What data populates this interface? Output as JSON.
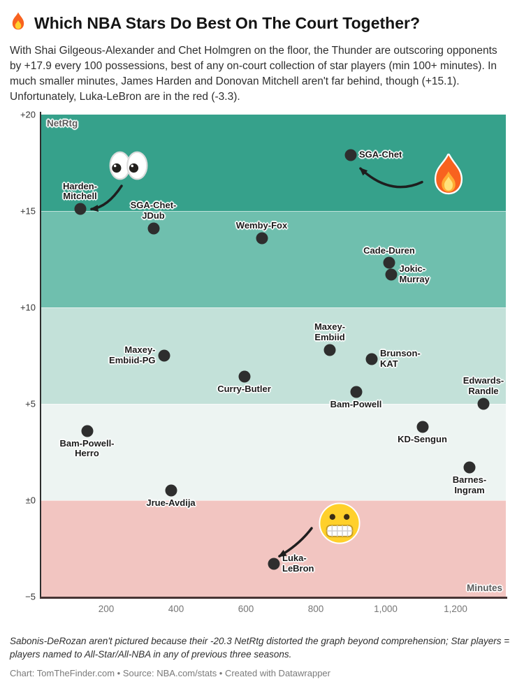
{
  "header": {
    "title": "Which NBA Stars Do Best On The Court Together?",
    "title_emoji": "fire-emoji",
    "description": "With Shai Gilgeous-Alexander and Chet Holmgren on the floor, the Thunder are outscoring opponents by +17.9 every 100 possessions, best of any on-court collection of star players (min 100+ minutes). In much smaller minutes, James Harden and Donovan Mitchell aren't far behind, though (+15.1). Unfortunately, Luka-LeBron are in the red (-3.3)."
  },
  "chart_data": {
    "type": "scatter",
    "xlabel": "Minutes",
    "ylabel": "NetRtg",
    "xlim": [
      14,
      1344
    ],
    "ylim": [
      -5,
      20
    ],
    "grid": "horizontal band boundaries",
    "legend": "none",
    "point_color": "#2e2e2e",
    "x_ticks": [
      {
        "value": 200,
        "label": "200"
      },
      {
        "value": 400,
        "label": "400"
      },
      {
        "value": 600,
        "label": "600"
      },
      {
        "value": 800,
        "label": "800"
      },
      {
        "value": 1000,
        "label": "1,000"
      },
      {
        "value": 1200,
        "label": "1,200"
      }
    ],
    "y_ticks": [
      {
        "value": 20,
        "label": "+20"
      },
      {
        "value": 15,
        "label": "+15"
      },
      {
        "value": 10,
        "label": "+10"
      },
      {
        "value": 5,
        "label": "+5"
      },
      {
        "value": 0,
        "label": "±0"
      },
      {
        "value": -5,
        "label": "−5"
      }
    ],
    "bands": [
      {
        "from": 15,
        "to": 20,
        "color": "#36a18b"
      },
      {
        "from": 10,
        "to": 15,
        "color": "#6fbfae"
      },
      {
        "from": 5,
        "to": 10,
        "color": "#c3e1d9"
      },
      {
        "from": 0,
        "to": 5,
        "color": "#edf4f2"
      },
      {
        "from": -5,
        "to": 0,
        "color": "#f2c5c1"
      }
    ],
    "points": [
      {
        "label": "SGA-Chet",
        "lines": [
          "SGA-Chet"
        ],
        "minutes": 900,
        "netrtg": 17.9,
        "side": "right"
      },
      {
        "label": "Harden-Mitchell",
        "lines": [
          "Harden-",
          "Mitchell"
        ],
        "minutes": 125,
        "netrtg": 15.1,
        "side": "above"
      },
      {
        "label": "SGA-Chet-JDub",
        "lines": [
          "SGA-Chet-",
          "JDub"
        ],
        "minutes": 335,
        "netrtg": 14.1,
        "side": "above"
      },
      {
        "label": "Wemby-Fox",
        "lines": [
          "Wemby-Fox"
        ],
        "minutes": 645,
        "netrtg": 13.6,
        "side": "above"
      },
      {
        "label": "Cade-Duren",
        "lines": [
          "Cade-Duren"
        ],
        "minutes": 1010,
        "netrtg": 12.3,
        "side": "above"
      },
      {
        "label": "Jokic-Murray",
        "lines": [
          "Jokic-",
          "Murray"
        ],
        "minutes": 1015,
        "netrtg": 11.7,
        "side": "right"
      },
      {
        "label": "Maxey-Embiid",
        "lines": [
          "Maxey-",
          "Embiid"
        ],
        "minutes": 840,
        "netrtg": 7.8,
        "side": "above"
      },
      {
        "label": "Maxey-Embiid-PG",
        "lines": [
          "Maxey-",
          "Embiid-PG"
        ],
        "minutes": 365,
        "netrtg": 7.5,
        "side": "left"
      },
      {
        "label": "Brunson-KAT",
        "lines": [
          "Brunson-",
          "KAT"
        ],
        "minutes": 960,
        "netrtg": 7.3,
        "side": "right"
      },
      {
        "label": "Curry-Butler",
        "lines": [
          "Curry-Butler"
        ],
        "minutes": 595,
        "netrtg": 6.4,
        "side": "below"
      },
      {
        "label": "Bam-Powell",
        "lines": [
          "Bam-Powell"
        ],
        "minutes": 915,
        "netrtg": 5.6,
        "side": "below"
      },
      {
        "label": "Edwards-Randle",
        "lines": [
          "Edwards-",
          "Randle"
        ],
        "minutes": 1280,
        "netrtg": 5.0,
        "side": "above"
      },
      {
        "label": "KD-Sengun",
        "lines": [
          "KD-Sengun"
        ],
        "minutes": 1105,
        "netrtg": 3.8,
        "side": "below"
      },
      {
        "label": "Bam-Powell-Herro",
        "lines": [
          "Bam-Powell-",
          "Herro"
        ],
        "minutes": 145,
        "netrtg": 3.6,
        "side": "below"
      },
      {
        "label": "Barnes-Ingram",
        "lines": [
          "Barnes-",
          "Ingram"
        ],
        "minutes": 1240,
        "netrtg": 1.7,
        "side": "below"
      },
      {
        "label": "Jrue-Avdija",
        "lines": [
          "Jrue-Avdija"
        ],
        "minutes": 385,
        "netrtg": 0.5,
        "side": "below"
      },
      {
        "label": "Luka-LeBron",
        "lines": [
          "Luka-",
          "LeBron"
        ],
        "minutes": 680,
        "netrtg": -3.3,
        "side": "right"
      }
    ],
    "annotations": {
      "emojis": [
        {
          "name": "eyes-emoji",
          "target": "Harden-Mitchell",
          "minutes": 264,
          "netrtg": 17.35
        },
        {
          "name": "fire-emoji",
          "target": "SGA-Chet",
          "minutes": 1180,
          "netrtg": 16.9
        },
        {
          "name": "grimacing-emoji",
          "target": "Luka-LeBron",
          "minutes": 868,
          "netrtg": -1.2
        }
      ],
      "arrows": [
        {
          "name": "arrow-to-harden-mitchell",
          "from": [
            244,
            16.3
          ],
          "ctrl": [
            204,
            15.2
          ],
          "to": [
            158,
            15.1
          ]
        },
        {
          "name": "arrow-to-sga-chet",
          "from": [
            1104,
            16.5
          ],
          "ctrl": [
            1014,
            15.75
          ],
          "to": [
            928,
            17.2
          ]
        },
        {
          "name": "arrow-to-luka-lebron",
          "from": [
            788,
            -1.45
          ],
          "ctrl": [
            754,
            -2.28
          ],
          "to": [
            696,
            -2.9
          ]
        }
      ]
    }
  },
  "footer": {
    "notes": "Sabonis-DeRozan aren't pictured because their -20.3 NetRtg distorted the graph beyond comprehension; Star players = players named to All-Star/All-NBA in any of previous three seasons.",
    "byline": "Chart: TomTheFinder.com • Source: NBA.com/stats • Created with Datawrapper"
  }
}
